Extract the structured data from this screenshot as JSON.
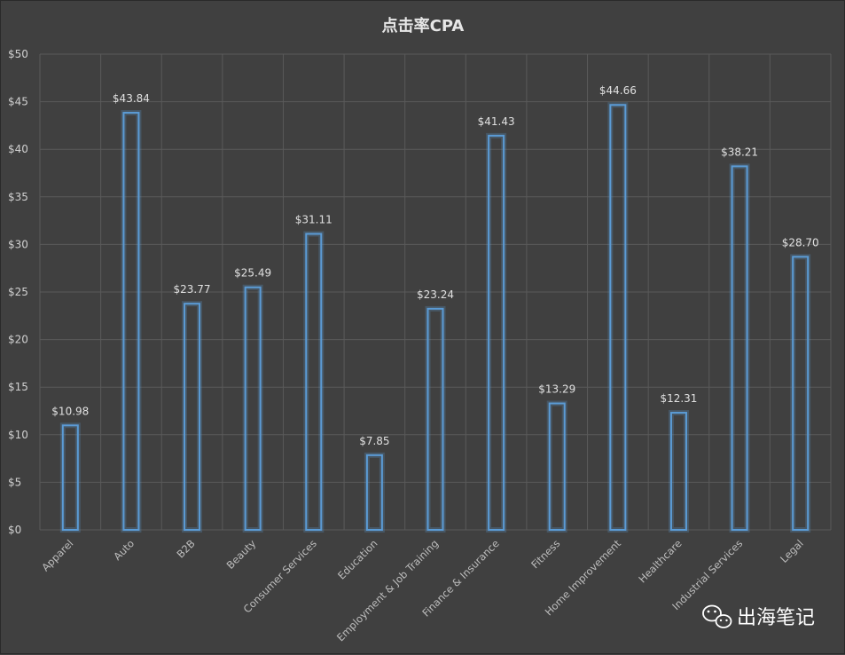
{
  "chart_data": {
    "type": "bar",
    "title": "点击率CPA",
    "categories": [
      "Apparel",
      "Auto",
      "B2B",
      "Beauty",
      "Consumer Services",
      "Education",
      "Employment & Job Training",
      "Finance & Insurance",
      "Fitness",
      "Home Improvement",
      "Healthcare",
      "Industrial Services",
      "Legal"
    ],
    "values": [
      10.98,
      43.84,
      23.77,
      25.49,
      31.11,
      7.85,
      23.24,
      41.43,
      13.29,
      44.66,
      12.31,
      38.21,
      28.7
    ],
    "data_labels": [
      "$10.98",
      "$43.84",
      "$23.77",
      "$25.49",
      "$31.11",
      "$7.85",
      "$23.24",
      "$41.43",
      "$13.29",
      "$44.66",
      "$12.31",
      "$38.21",
      "$28.70"
    ],
    "ylim": [
      0,
      50
    ],
    "yticks": [
      0,
      5,
      10,
      15,
      20,
      25,
      30,
      35,
      40,
      45,
      50
    ],
    "ytick_labels": [
      "$0",
      "$5",
      "$10",
      "$15",
      "$20",
      "$25",
      "$30",
      "$35",
      "$40",
      "$45",
      "$50"
    ],
    "grid": true,
    "bar_color": "#5b9bd5",
    "background": "#404040"
  },
  "watermark": {
    "text": "出海笔记",
    "icon": "wechat-icon"
  }
}
